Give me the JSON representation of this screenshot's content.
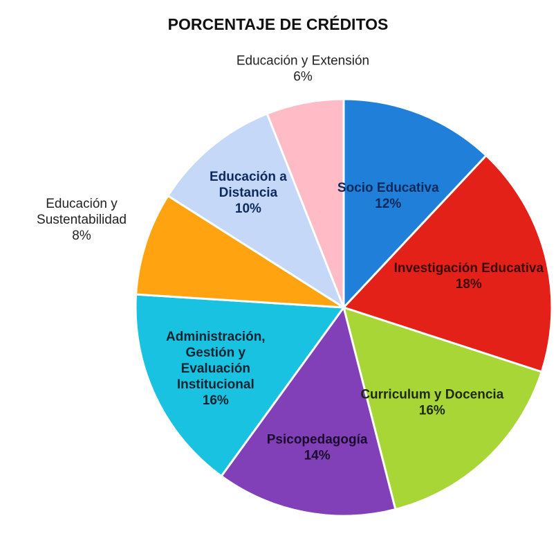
{
  "chart_data": {
    "type": "pie",
    "title": "PORCENTAJE DE CRÉDITOS",
    "slices": [
      {
        "name": "Socio Educativa",
        "label_lines": [
          "Socio Educativa"
        ],
        "percent_label": "12%",
        "value": 12,
        "color": "#1f7fd9",
        "text_color": "#0d2a5c",
        "label_position": "inside"
      },
      {
        "name": "Investigación Educativa",
        "label_lines": [
          "Investigación Educativa"
        ],
        "percent_label": "18%",
        "value": 18,
        "color": "#e32119",
        "text_color": "#3d0a08",
        "label_position": "inside"
      },
      {
        "name": "Curriculum y Docencia",
        "label_lines": [
          "Curriculum y Docencia"
        ],
        "percent_label": "16%",
        "value": 16,
        "color": "#a8d636",
        "text_color": "#1d2a07",
        "label_position": "inside"
      },
      {
        "name": "Psicopedagogía",
        "label_lines": [
          "Psicopedagogía"
        ],
        "percent_label": "14%",
        "value": 14,
        "color": "#8140b8",
        "text_color": "#1a0a2e",
        "label_position": "inside"
      },
      {
        "name": "Administración, Gestión y Evaluación Institucional",
        "label_lines": [
          "Administración,",
          "Gestión y",
          "Evaluación",
          "Institucional"
        ],
        "percent_label": "16%",
        "value": 16,
        "color": "#19c2e0",
        "text_color": "#0b2430",
        "label_position": "inside"
      },
      {
        "name": "Educación y Sustentabilidad",
        "label_lines": [
          "Educación y",
          "Sustentabilidad"
        ],
        "percent_label": "8%",
        "value": 8,
        "color": "#ffa410",
        "text_color": "#222222",
        "label_position": "outside"
      },
      {
        "name": "Educación a Distancia",
        "label_lines": [
          "Educación a",
          "Distancia"
        ],
        "percent_label": "10%",
        "value": 10,
        "color": "#c5d8f7",
        "text_color": "#0d2a5c",
        "label_position": "inside"
      },
      {
        "name": "Educación y Extensión",
        "label_lines": [
          "Educación y Extensión"
        ],
        "percent_label": "6%",
        "value": 6,
        "color": "#ffbcc6",
        "text_color": "#222222",
        "label_position": "outside"
      }
    ]
  }
}
